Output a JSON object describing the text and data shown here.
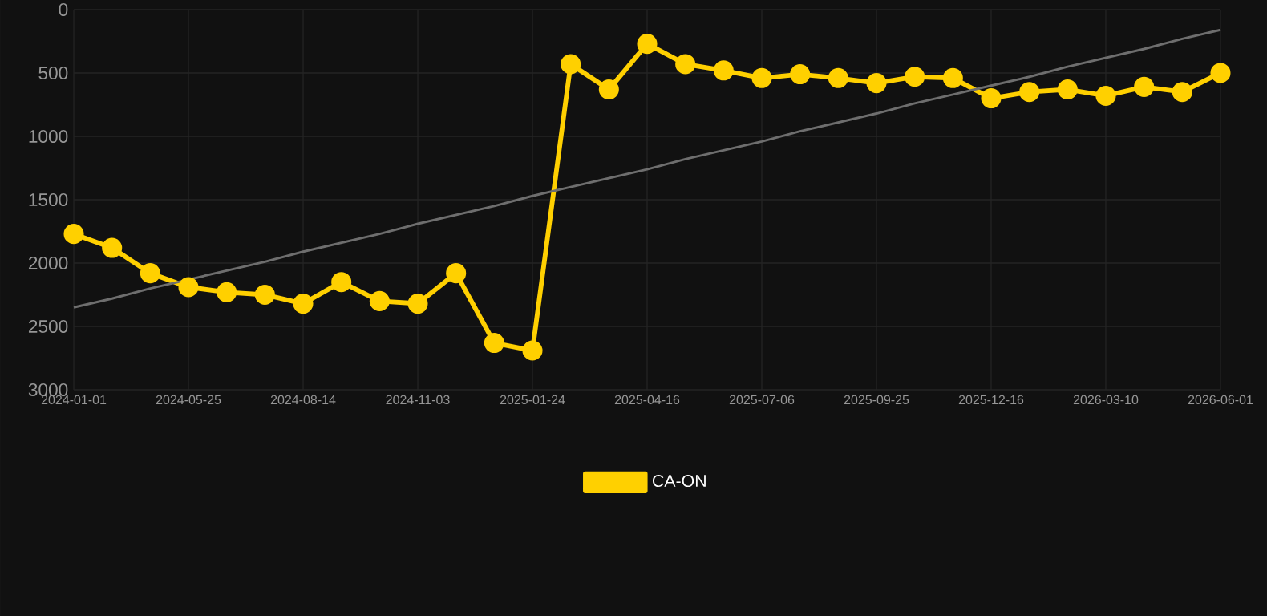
{
  "chart_data": {
    "type": "line",
    "categories": [
      "2024-01-01",
      null,
      null,
      "2024-05-25",
      null,
      null,
      "2024-08-14",
      null,
      null,
      "2024-11-03",
      null,
      null,
      "2025-01-24",
      null,
      null,
      "2025-04-16",
      null,
      null,
      "2025-07-06",
      null,
      null,
      "2025-09-25",
      null,
      null,
      "2025-12-16",
      null,
      null,
      "2026-03-10",
      null,
      null,
      "2026-06-01"
    ],
    "series": [
      {
        "name": "CA-ON",
        "color": "#ffd000",
        "marker": "circle",
        "values": [
          1770,
          1880,
          2080,
          2190,
          2230,
          2250,
          2320,
          2150,
          2300,
          2320,
          2080,
          2630,
          2690,
          430,
          630,
          270,
          430,
          480,
          540,
          510,
          540,
          580,
          530,
          540,
          700,
          650,
          630,
          680,
          610,
          650,
          500
        ]
      },
      {
        "type": "line",
        "color": "#6e6e6e",
        "marker": "none",
        "values": [
          2350,
          2280,
          2200,
          2130,
          2060,
          1990,
          1910,
          1840,
          1770,
          1690,
          1620,
          1550,
          1470,
          1400,
          1330,
          1260,
          1180,
          1110,
          1040,
          960,
          890,
          820,
          740,
          670,
          600,
          530,
          450,
          380,
          310,
          230,
          160
        ]
      }
    ],
    "ylim": [
      3000,
      0
    ],
    "yticks": [
      0,
      500,
      1000,
      1500,
      2000,
      2500,
      3000
    ],
    "grid": true,
    "legend": "bottom"
  }
}
